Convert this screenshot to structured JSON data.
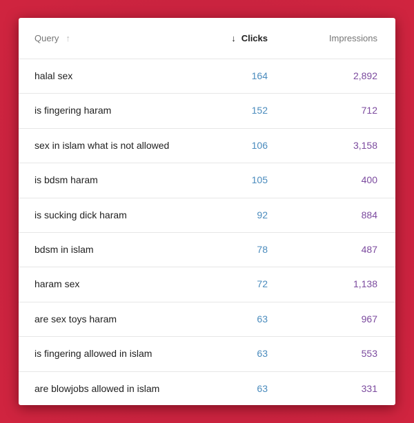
{
  "table": {
    "headers": {
      "query": "Query",
      "clicks": "Clicks",
      "impressions": "Impressions"
    },
    "icons": {
      "query_sort": "arrow-up-icon",
      "clicks_sort": "arrow-down-icon"
    },
    "colors": {
      "clicks": "#4a8bbd",
      "impressions": "#7b4a9e",
      "background": "#c8233f"
    },
    "rows": [
      {
        "query": "halal sex",
        "clicks": "164",
        "impressions": "2,892"
      },
      {
        "query": "is fingering haram",
        "clicks": "152",
        "impressions": "712"
      },
      {
        "query": "sex in islam what is not allowed",
        "clicks": "106",
        "impressions": "3,158"
      },
      {
        "query": "is bdsm haram",
        "clicks": "105",
        "impressions": "400"
      },
      {
        "query": "is sucking dick haram",
        "clicks": "92",
        "impressions": "884"
      },
      {
        "query": "bdsm in islam",
        "clicks": "78",
        "impressions": "487"
      },
      {
        "query": "haram sex",
        "clicks": "72",
        "impressions": "1,138"
      },
      {
        "query": "are sex toys haram",
        "clicks": "63",
        "impressions": "967"
      },
      {
        "query": "is fingering allowed in islam",
        "clicks": "63",
        "impressions": "553"
      },
      {
        "query": "are blowjobs allowed in islam",
        "clicks": "63",
        "impressions": "331"
      }
    ]
  }
}
